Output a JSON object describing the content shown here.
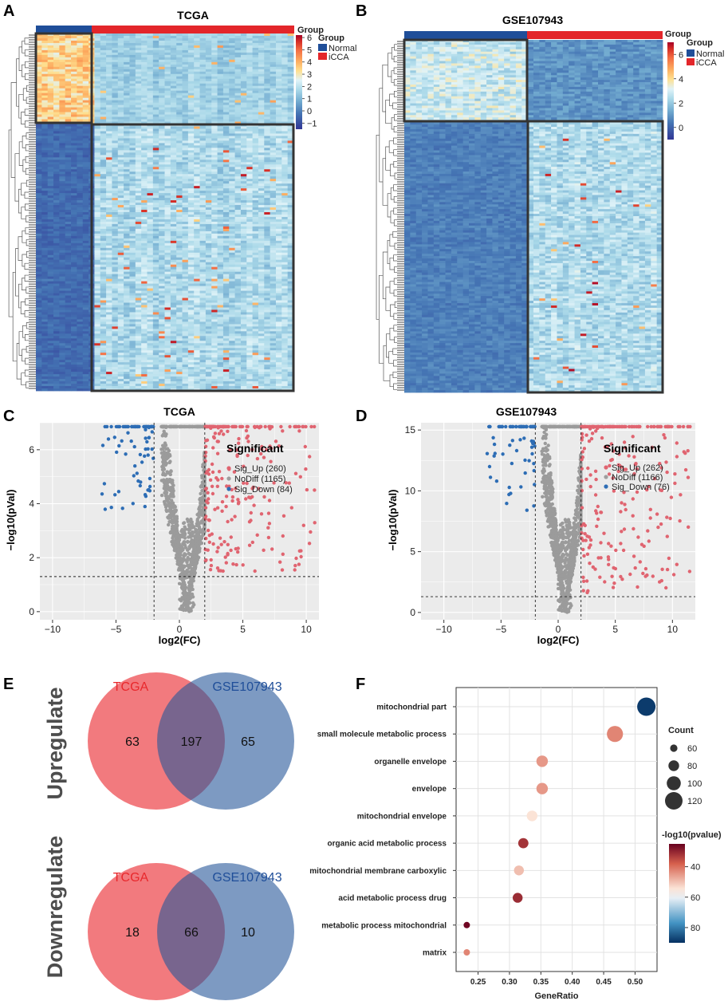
{
  "panels": {
    "A": "A",
    "B": "B",
    "C": "C",
    "D": "D",
    "E": "E",
    "F": "F"
  },
  "chart_data": [
    {
      "type": "heatmap",
      "panel": "A",
      "title": "TCGA",
      "annotation_label": "Group",
      "legend_title": "Group",
      "groups": [
        "Normal",
        "iCCA"
      ],
      "group_colors": [
        "#1f4e99",
        "#e3262a"
      ],
      "colorbar_ticks": [
        6,
        5,
        4,
        3,
        2,
        1,
        0,
        -1
      ],
      "colorbar_range": [
        -1.5,
        6.2
      ]
    },
    {
      "type": "heatmap",
      "panel": "B",
      "title": "GSE107943",
      "annotation_label": "Group",
      "legend_title": "Group",
      "groups": [
        "Normal",
        "iCCA"
      ],
      "group_colors": [
        "#1f4e99",
        "#e3262a"
      ],
      "colorbar_ticks": [
        6,
        4,
        2,
        0
      ],
      "colorbar_range": [
        -1,
        7
      ]
    },
    {
      "type": "scatter",
      "panel": "C",
      "title": "TCGA",
      "xlabel": "log2(FC)",
      "ylabel": "−log10(pVal)",
      "xlim": [
        -11,
        11
      ],
      "ylim": [
        -0.3,
        7
      ],
      "xticks": [
        -10,
        -5,
        0,
        5,
        10
      ],
      "yticks": [
        0,
        2,
        4,
        6
      ],
      "fc_cutoff": 2,
      "p_cutoff": 1.3,
      "legend_title": "Significant",
      "legend": [
        "Sig_Up (260)",
        "NoDiff (1165)",
        "Sig_Down (84)"
      ],
      "counts": {
        "up": 260,
        "nodiff": 1165,
        "down": 84
      }
    },
    {
      "type": "scatter",
      "panel": "D",
      "title": "GSE107943",
      "xlabel": "log2(FC)",
      "ylabel": "−log10(pVal)",
      "xlim": [
        -12,
        12
      ],
      "ylim": [
        -0.6,
        15.6
      ],
      "xticks": [
        -10,
        -5,
        0,
        5,
        10
      ],
      "yticks": [
        0,
        5,
        10,
        15
      ],
      "fc_cutoff": 2,
      "p_cutoff": 1.3,
      "legend_title": "Significant",
      "legend": [
        "Sig_Up (262)",
        "NoDiff (1166)",
        "Sig_Down (76)"
      ],
      "counts": {
        "up": 262,
        "nodiff": 1166,
        "down": 76
      }
    },
    {
      "type": "venn",
      "panel": "E",
      "sets": [
        "TCGA",
        "GSE107943"
      ],
      "diagrams": [
        {
          "label": "Upregulate",
          "only_a": 63,
          "both": 197,
          "only_b": 65
        },
        {
          "label": "Downregulate",
          "only_a": 18,
          "both": 66,
          "only_b": 10
        }
      ]
    },
    {
      "type": "scatter",
      "panel": "F",
      "xlabel": "GeneRatio",
      "xlim": [
        0.215,
        0.535
      ],
      "xticks": [
        0.25,
        0.3,
        0.35,
        0.4,
        0.45,
        0.5
      ],
      "xtick_labels": [
        "0.25",
        "0.30",
        "0.35",
        "0.40",
        "0.45",
        "0.50"
      ],
      "terms": [
        {
          "term": "mitochondrial part",
          "gene_ratio": 0.518,
          "count": 125,
          "neglog10p": 88
        },
        {
          "term": "small molecule metabolic process",
          "gene_ratio": 0.468,
          "count": 112,
          "neglog10p": 42
        },
        {
          "term": "organelle envelope",
          "gene_ratio": 0.352,
          "count": 85,
          "neglog10p": 44
        },
        {
          "term": "envelope",
          "gene_ratio": 0.352,
          "count": 85,
          "neglog10p": 44
        },
        {
          "term": "mitochondrial envelope",
          "gene_ratio": 0.336,
          "count": 80,
          "neglog10p": 52
        },
        {
          "term": "organic acid metabolic process",
          "gene_ratio": 0.322,
          "count": 77,
          "neglog10p": 32
        },
        {
          "term": "mitochondrial membrane carboxylic",
          "gene_ratio": 0.315,
          "count": 75,
          "neglog10p": 48
        },
        {
          "term": "acid metabolic process drug",
          "gene_ratio": 0.313,
          "count": 75,
          "neglog10p": 31
        },
        {
          "term": "metabolic process mitochondrial",
          "gene_ratio": 0.232,
          "count": 55,
          "neglog10p": 26
        },
        {
          "term": "matrix",
          "gene_ratio": 0.232,
          "count": 55,
          "neglog10p": 42
        }
      ],
      "size_legend": {
        "title": "Count",
        "values": [
          60,
          80,
          100,
          120
        ]
      },
      "color_legend": {
        "title": "-log10(pvalue)",
        "ticks": [
          40,
          60,
          80
        ],
        "range": [
          25,
          90
        ]
      }
    }
  ]
}
